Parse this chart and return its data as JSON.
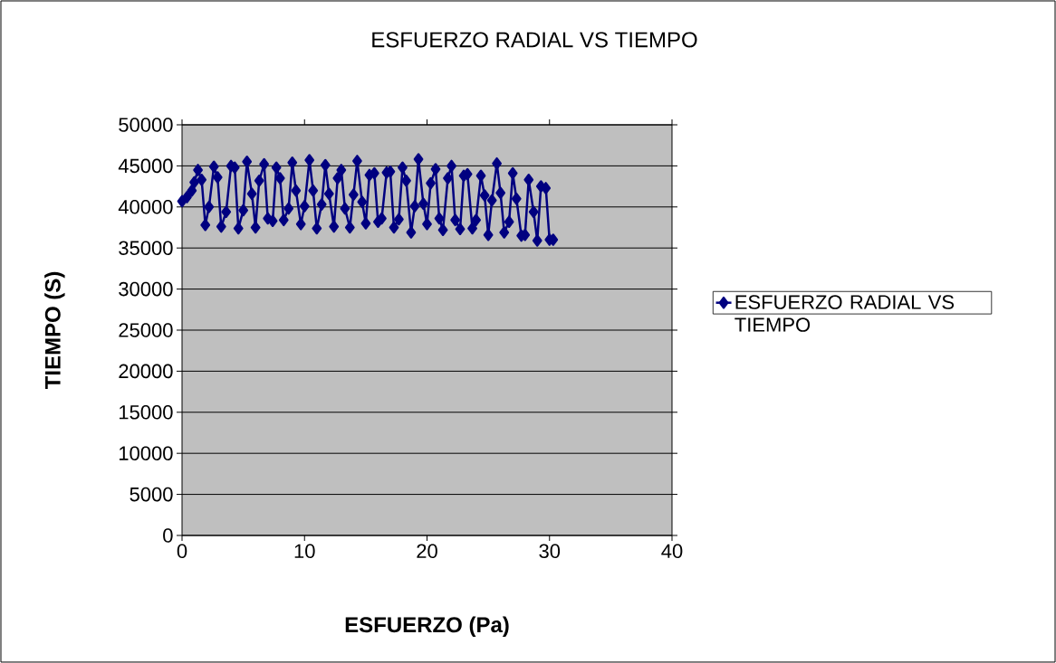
{
  "chart_data": {
    "type": "line",
    "title": "ESFUERZO RADIAL VS TIEMPO",
    "xlabel": "ESFUERZO (Pa)",
    "ylabel": "TIEMPO (S)",
    "xlim": [
      0,
      40
    ],
    "xticks": [
      0,
      10,
      20,
      30,
      40
    ],
    "ylim": [
      0,
      50000
    ],
    "yticks": [
      0,
      5000,
      10000,
      15000,
      20000,
      25000,
      30000,
      35000,
      40000,
      45000,
      50000
    ],
    "grid": "y",
    "legend": "right",
    "marker": "diamond",
    "line_style": "solid",
    "series": [
      {
        "name": "ESFUERZO RADIAL VS TIEMPO",
        "color": "#000080",
        "x": [
          0,
          0.4,
          0.8,
          1.0,
          1.3,
          1.6,
          1.9,
          2.2,
          2.6,
          2.9,
          3.2,
          3.6,
          4.0,
          4.3,
          4.6,
          5.0,
          5.3,
          5.7,
          6.0,
          6.3,
          6.7,
          7.0,
          7.4,
          7.7,
          8.0,
          8.3,
          8.7,
          9.0,
          9.3,
          9.7,
          10.0,
          10.4,
          10.7,
          11.0,
          11.4,
          11.7,
          12.0,
          12.4,
          12.7,
          13.0,
          13.3,
          13.7,
          14.0,
          14.3,
          14.7,
          15.0,
          15.3,
          15.7,
          16.0,
          16.3,
          16.7,
          17.0,
          17.3,
          17.7,
          18.0,
          18.3,
          18.7,
          19.0,
          19.3,
          19.7,
          20.0,
          20.3,
          20.7,
          21.0,
          21.3,
          21.7,
          22.0,
          22.3,
          22.7,
          23.0,
          23.3,
          23.7,
          24.0,
          24.4,
          24.7,
          25.0,
          25.3,
          25.7,
          26.0,
          26.3,
          26.7,
          27.0,
          27.3,
          27.7,
          28.0,
          28.3,
          28.7,
          29.0,
          29.3,
          29.7,
          30.0,
          30.3
        ],
        "values": [
          40700,
          41200,
          42000,
          43000,
          44500,
          43300,
          37800,
          40000,
          44900,
          43600,
          37600,
          39400,
          45000,
          44800,
          37400,
          39600,
          45500,
          41600,
          37500,
          43200,
          45200,
          38600,
          38300,
          44800,
          43500,
          38400,
          39800,
          45400,
          42000,
          37900,
          40100,
          45700,
          42000,
          37400,
          40300,
          45100,
          41600,
          37600,
          43500,
          44500,
          39800,
          37500,
          41500,
          45600,
          40600,
          38000,
          43900,
          44100,
          38200,
          38600,
          44200,
          44300,
          37500,
          38500,
          44800,
          43200,
          36900,
          40100,
          45800,
          40400,
          37900,
          42900,
          44600,
          38600,
          37200,
          43500,
          45000,
          38400,
          37300,
          43800,
          44000,
          37400,
          38400,
          43800,
          41400,
          36600,
          40800,
          45300,
          41700,
          36900,
          38200,
          44100,
          41000,
          36500,
          36600,
          43300,
          39400,
          35900,
          42500,
          42300,
          36000,
          36000
        ]
      }
    ]
  }
}
